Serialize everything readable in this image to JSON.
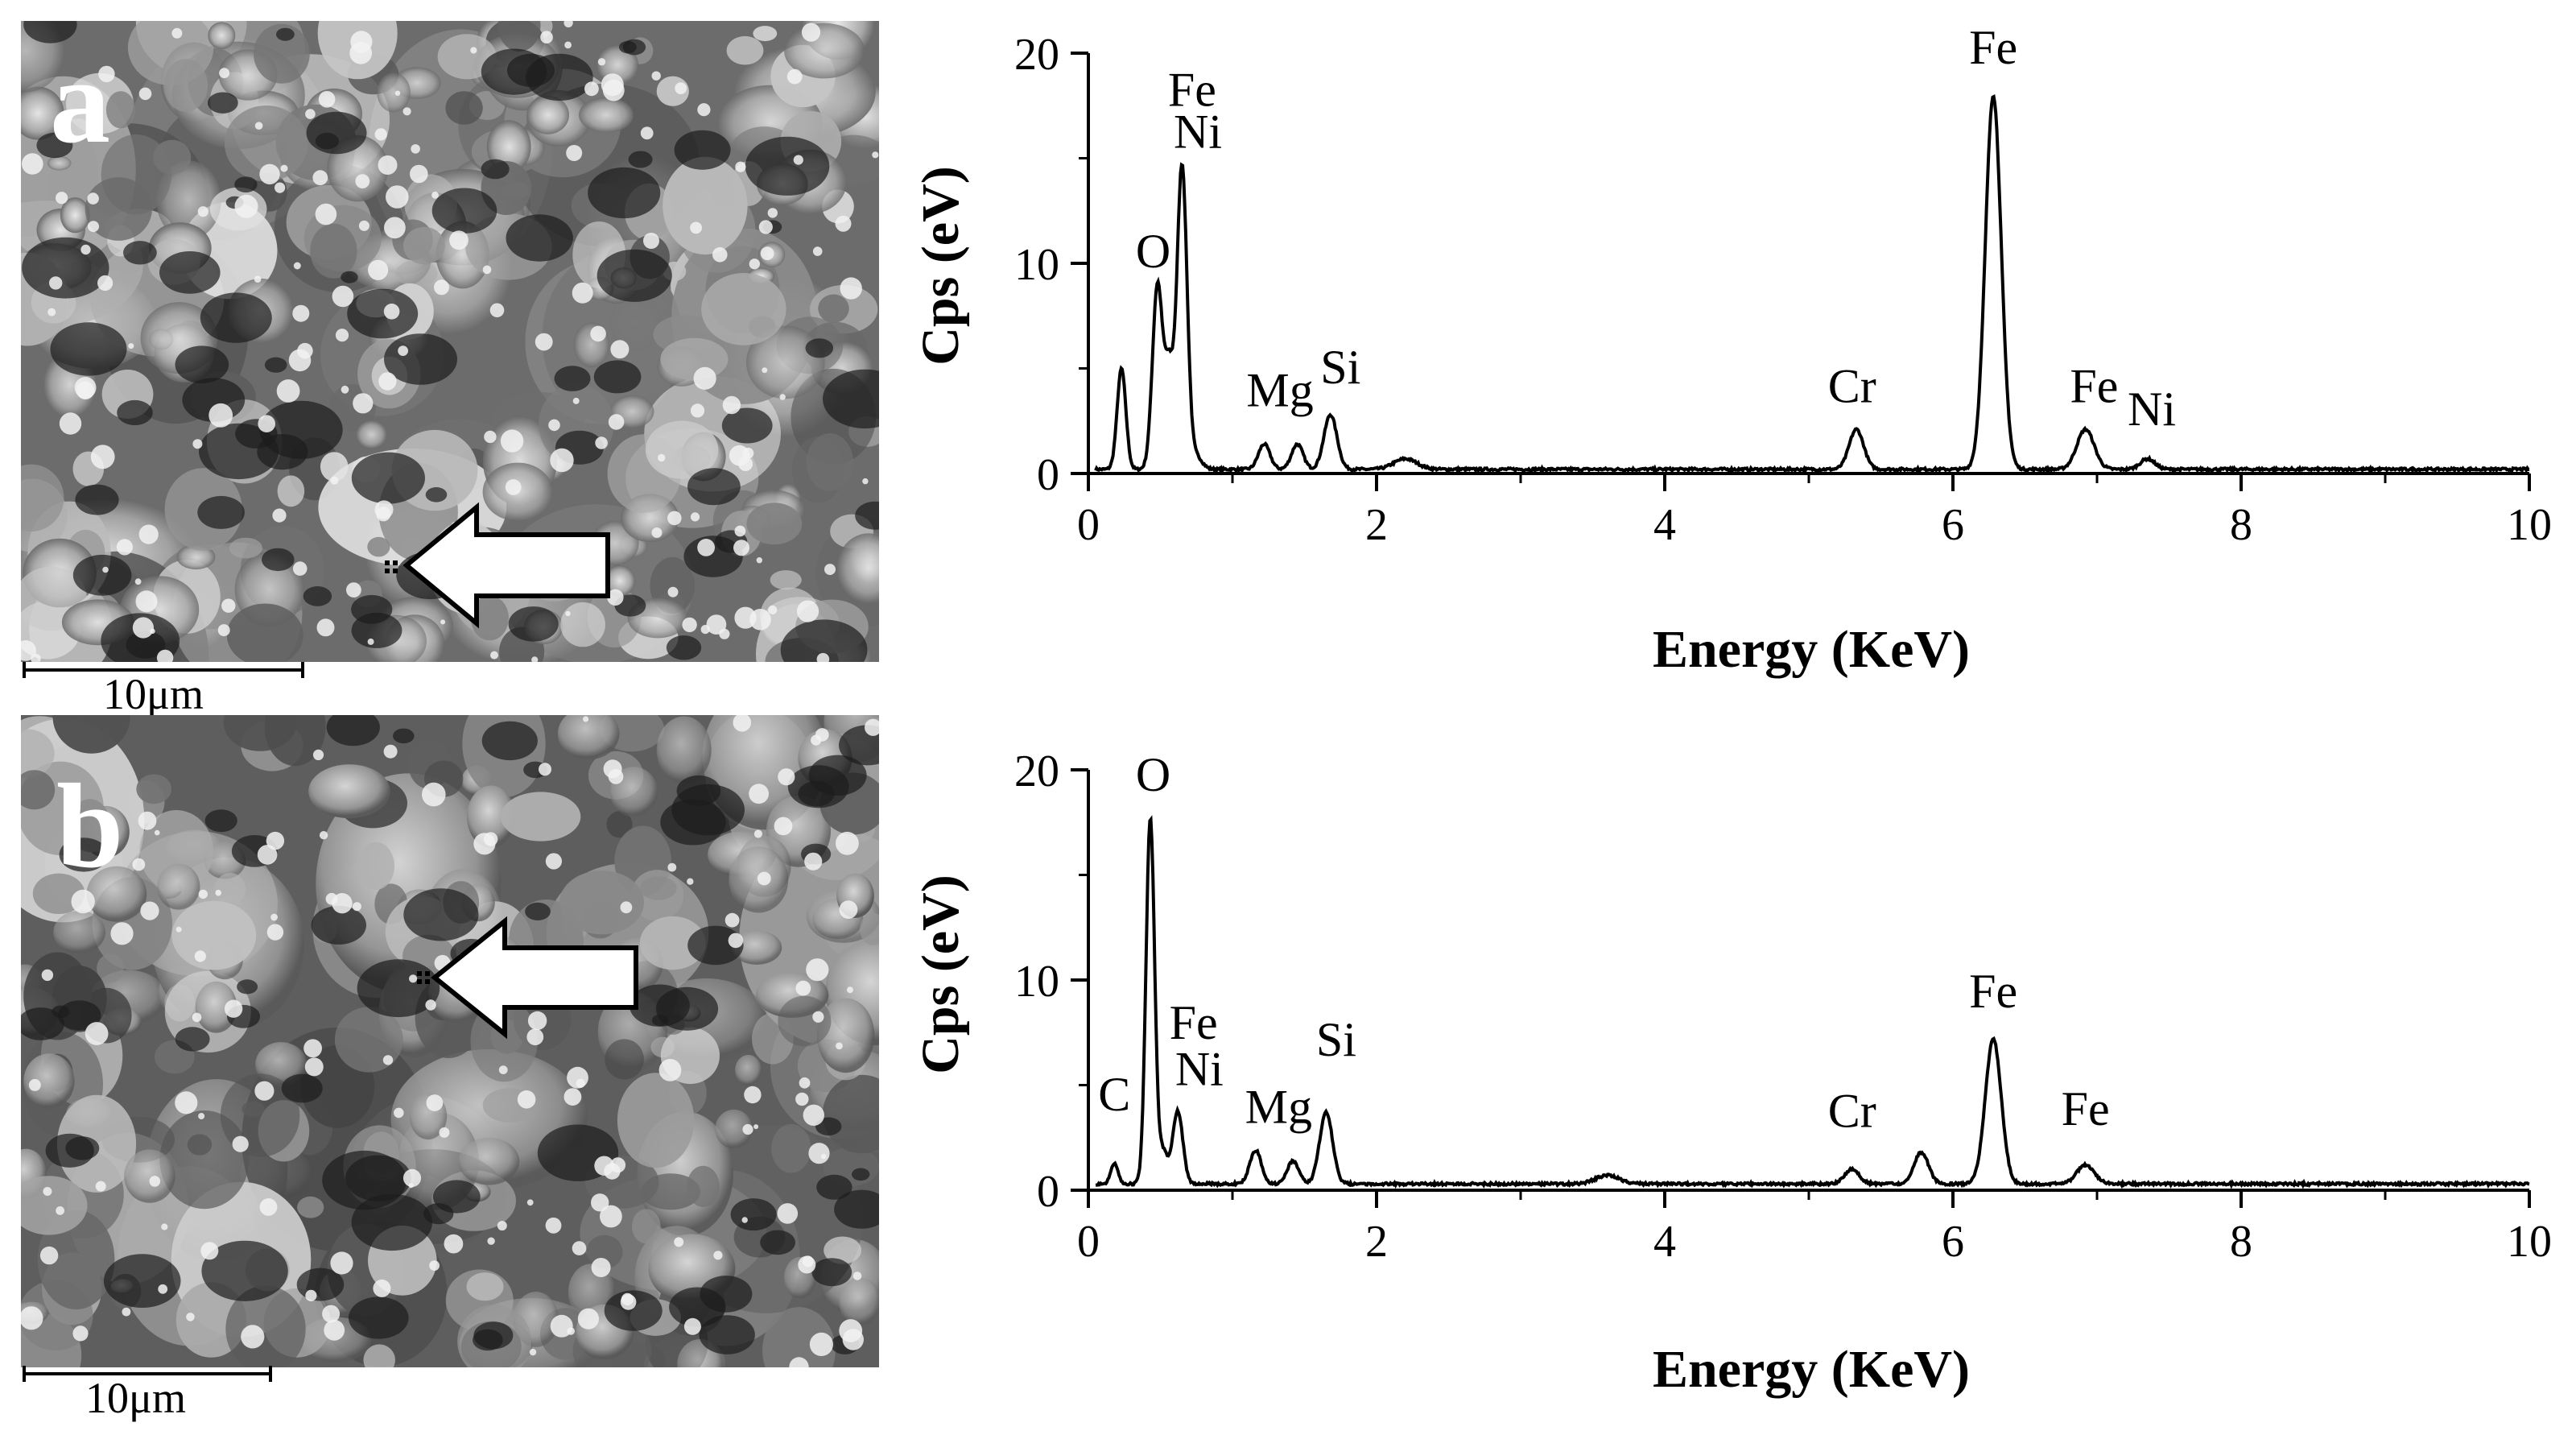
{
  "panels": [
    {
      "letter": "a",
      "scale_bar_label": "10μm"
    },
    {
      "letter": "b",
      "scale_bar_label": "10μm"
    }
  ],
  "chart_data": [
    {
      "type": "line",
      "panel": "a",
      "title": "",
      "xlabel": "Energy (KeV)",
      "ylabel": "Cps (eV)",
      "xlim": [
        0,
        10
      ],
      "ylim": [
        0,
        20
      ],
      "xticks": [
        "0",
        "2",
        "4",
        "6",
        "8",
        "10"
      ],
      "yticks": [
        "0",
        "10",
        "20"
      ],
      "baseline": 0.2,
      "peaks": [
        {
          "x": 0.23,
          "y": 4.8,
          "w": 0.03
        },
        {
          "x": 0.48,
          "y": 8.8,
          "w": 0.035
        },
        {
          "x": 0.56,
          "y": 4.5,
          "w": 0.03
        },
        {
          "x": 0.65,
          "y": 14.5,
          "w": 0.035
        },
        {
          "x": 0.75,
          "y": 0.6,
          "w": 0.04
        },
        {
          "x": 1.22,
          "y": 1.2,
          "w": 0.04
        },
        {
          "x": 1.45,
          "y": 1.2,
          "w": 0.04
        },
        {
          "x": 1.68,
          "y": 2.6,
          "w": 0.045
        },
        {
          "x": 2.2,
          "y": 0.5,
          "w": 0.08
        },
        {
          "x": 5.33,
          "y": 1.9,
          "w": 0.05
        },
        {
          "x": 6.28,
          "y": 17.8,
          "w": 0.055
        },
        {
          "x": 6.92,
          "y": 1.9,
          "w": 0.06
        },
        {
          "x": 7.35,
          "y": 0.5,
          "w": 0.05
        }
      ],
      "annotations": [
        {
          "text": "Fe",
          "x": 0.72,
          "y": 17.5
        },
        {
          "text": "Ni",
          "x": 0.76,
          "y": 15.5
        },
        {
          "text": "O",
          "x": 0.45,
          "y": 9.8
        },
        {
          "text": "Mg",
          "x": 1.33,
          "y": 3.2
        },
        {
          "text": "Si",
          "x": 1.75,
          "y": 4.3
        },
        {
          "text": "Cr",
          "x": 5.3,
          "y": 3.4
        },
        {
          "text": "Fe",
          "x": 6.28,
          "y": 19.5
        },
        {
          "text": "Fe",
          "x": 6.98,
          "y": 3.4
        },
        {
          "text": "Ni",
          "x": 7.38,
          "y": 2.3
        }
      ]
    },
    {
      "type": "line",
      "panel": "b",
      "title": "",
      "xlabel": "Energy (KeV)",
      "ylabel": "Cps (eV)",
      "xlim": [
        0,
        10
      ],
      "ylim": [
        0,
        20
      ],
      "xticks": [
        "0",
        "2",
        "4",
        "6",
        "8",
        "10"
      ],
      "yticks": [
        "0",
        "10",
        "20"
      ],
      "baseline": 0.3,
      "peaks": [
        {
          "x": 0.18,
          "y": 1.0,
          "w": 0.025
        },
        {
          "x": 0.43,
          "y": 17.4,
          "w": 0.03
        },
        {
          "x": 0.52,
          "y": 1.5,
          "w": 0.03
        },
        {
          "x": 0.62,
          "y": 3.5,
          "w": 0.035
        },
        {
          "x": 1.16,
          "y": 1.6,
          "w": 0.04
        },
        {
          "x": 1.42,
          "y": 1.1,
          "w": 0.04
        },
        {
          "x": 1.65,
          "y": 3.4,
          "w": 0.045
        },
        {
          "x": 3.6,
          "y": 0.4,
          "w": 0.08
        },
        {
          "x": 5.3,
          "y": 0.7,
          "w": 0.05
        },
        {
          "x": 5.78,
          "y": 1.5,
          "w": 0.05
        },
        {
          "x": 6.28,
          "y": 6.9,
          "w": 0.055
        },
        {
          "x": 6.92,
          "y": 0.9,
          "w": 0.06
        }
      ],
      "annotations": [
        {
          "text": "O",
          "x": 0.45,
          "y": 19.0
        },
        {
          "text": "C",
          "x": 0.18,
          "y": 3.8
        },
        {
          "text": "Fe",
          "x": 0.73,
          "y": 7.2
        },
        {
          "text": "Ni",
          "x": 0.77,
          "y": 5.0
        },
        {
          "text": "Mg",
          "x": 1.32,
          "y": 3.2
        },
        {
          "text": "Si",
          "x": 1.72,
          "y": 6.4
        },
        {
          "text": "Cr",
          "x": 5.3,
          "y": 3.0
        },
        {
          "text": "Fe",
          "x": 6.28,
          "y": 8.7
        },
        {
          "text": "Fe",
          "x": 6.92,
          "y": 3.1
        }
      ]
    }
  ]
}
